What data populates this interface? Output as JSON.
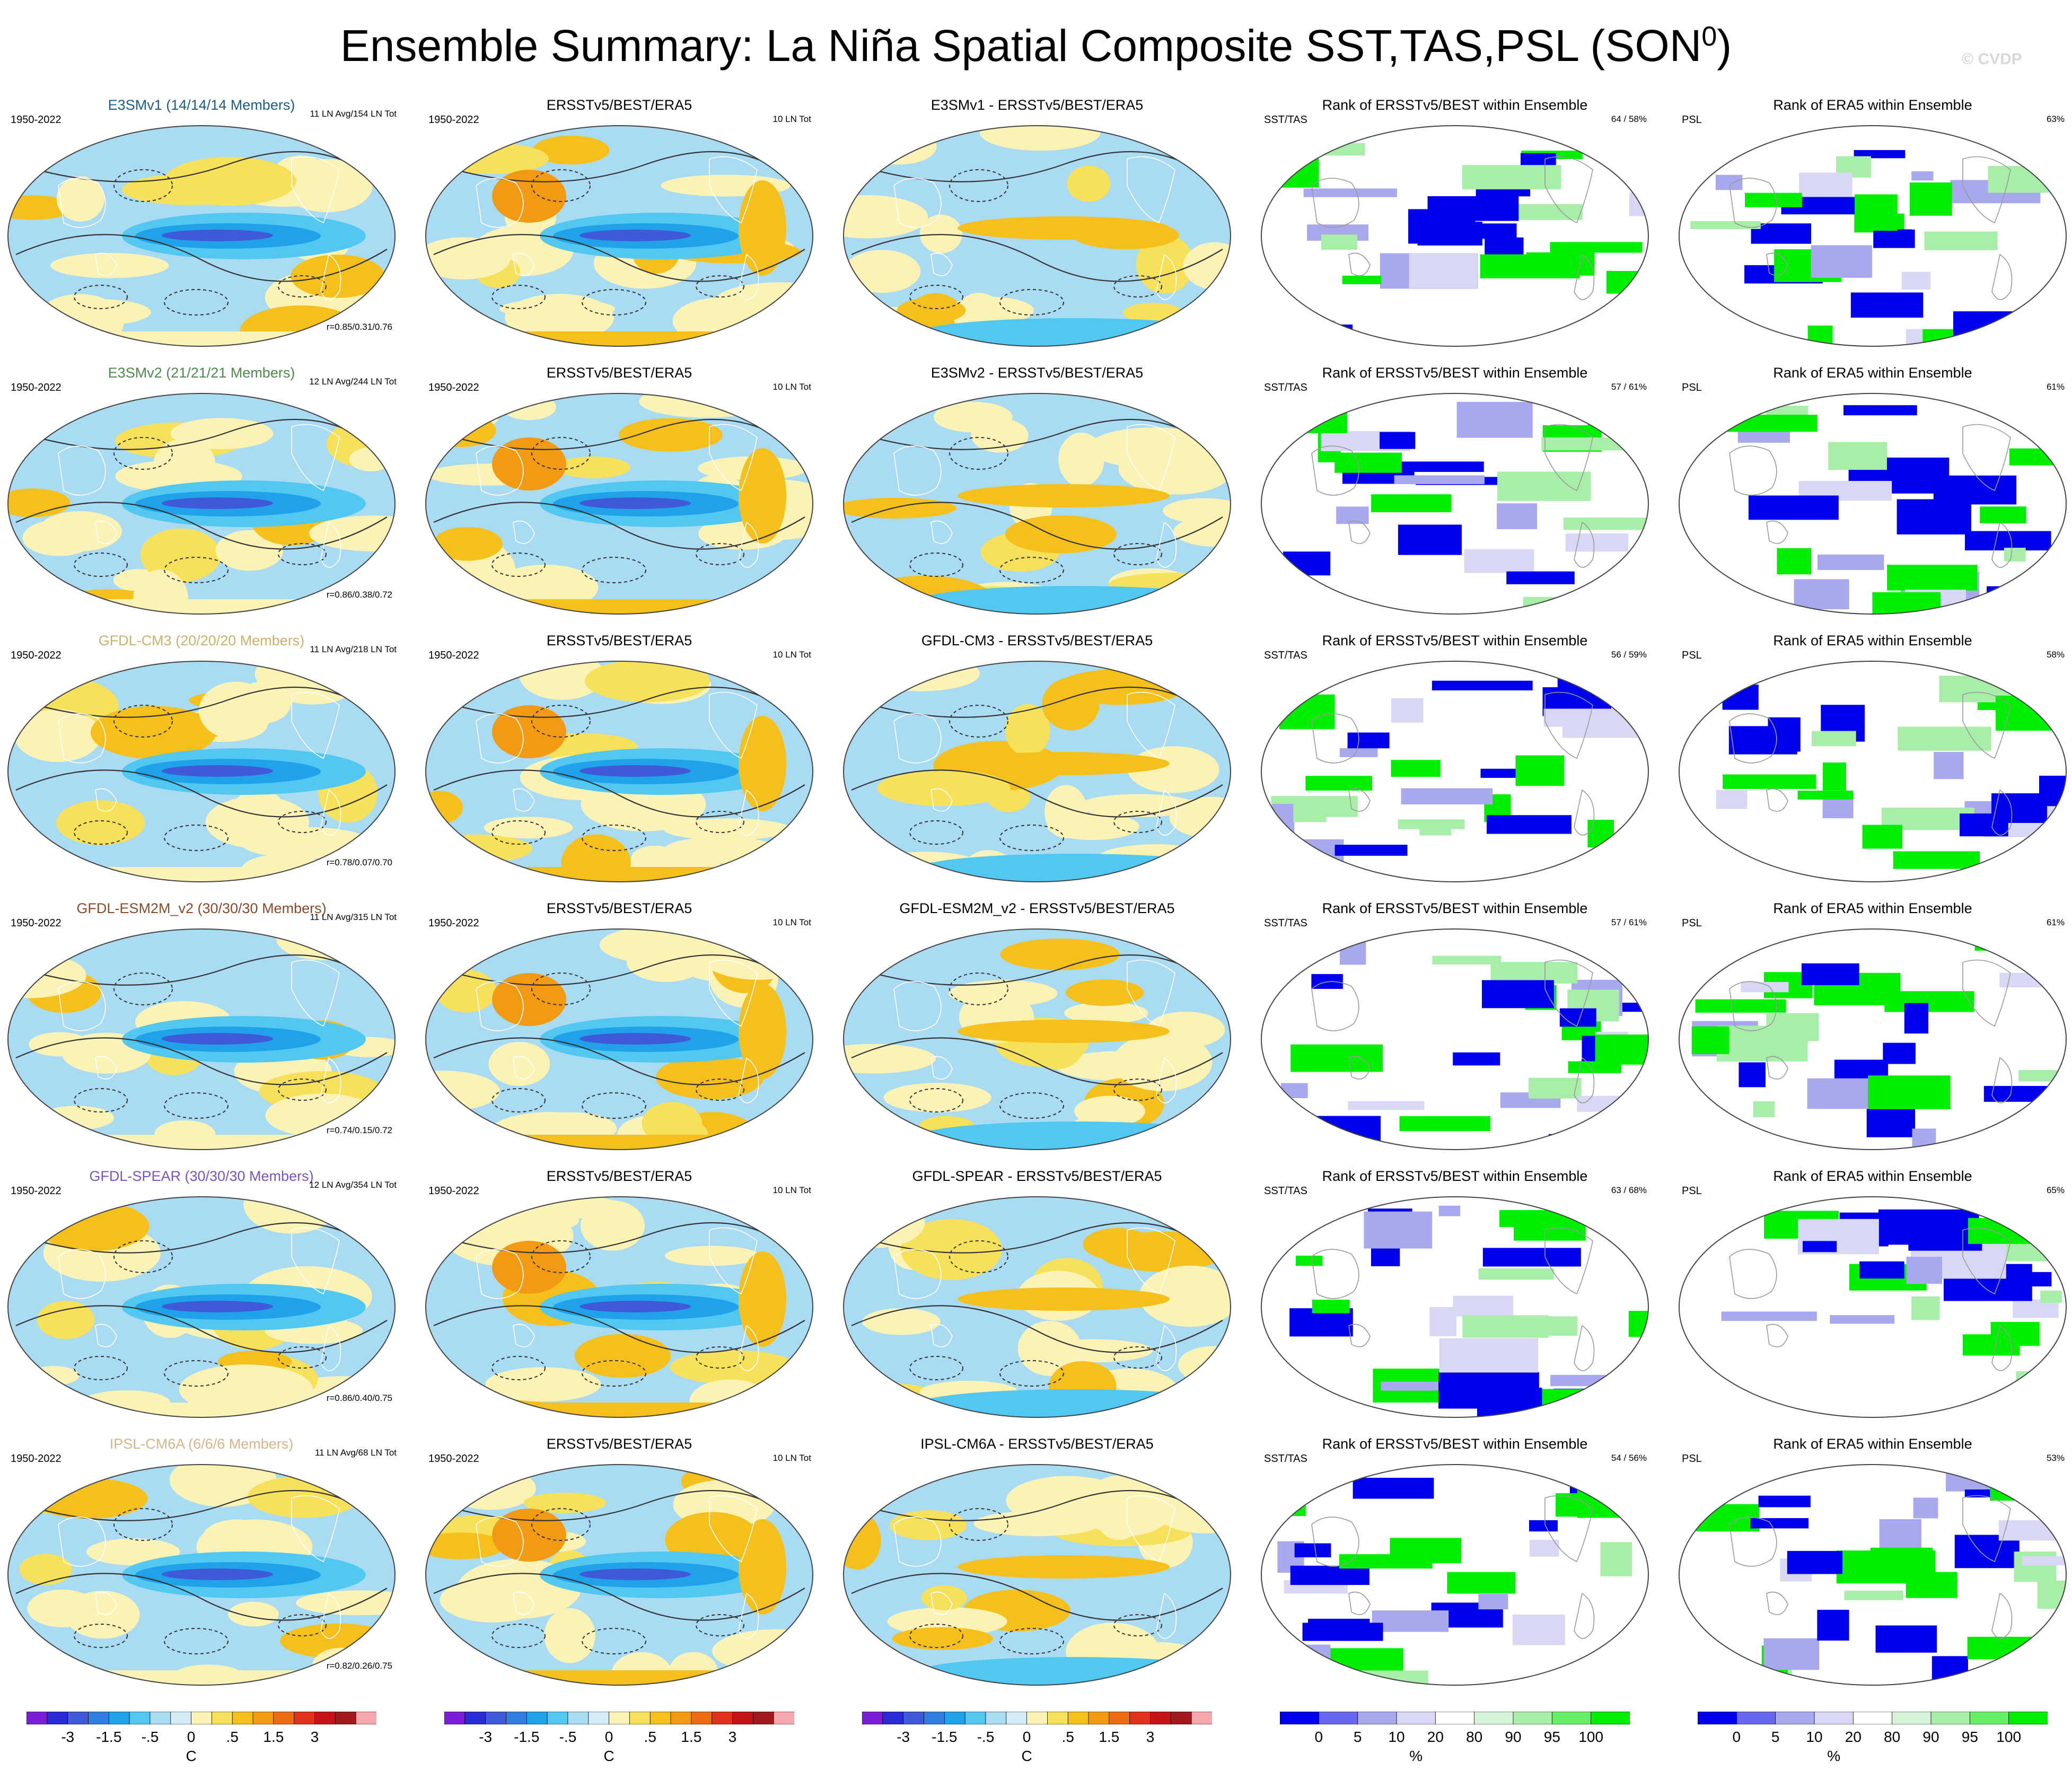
{
  "figure": {
    "title_main": "Ensemble Summary: La Niña Spatial Composite SST,TAS,PSL (SON",
    "title_sup": "0",
    "title_close": ")",
    "watermark": "© CVDP"
  },
  "rows": [
    {
      "model": "E3SMv1 (14/14/14 Members)",
      "model_color": "#1b5e8c",
      "period": "1950-2022",
      "model_stat": "11 LN Avg/154 LN Tot",
      "corr": "r=0.85/0.31/0.76",
      "obs_title": "ERSSTv5/BEST/ERA5",
      "obs_period": "1950-2022",
      "obs_stat": "10 LN Tot",
      "diff_title": "E3SMv1 - ERSSTv5/BEST/ERA5",
      "rank1_title": "Rank of ERSSTv5/BEST within Ensemble",
      "rank1_label": "SST/TAS",
      "rank1_pct": "64 /  58%",
      "rank2_title": "Rank of ERA5 within Ensemble",
      "rank2_label": "PSL",
      "rank2_pct": "63%"
    },
    {
      "model": "E3SMv2 (21/21/21 Members)",
      "model_color": "#4e8a4e",
      "period": "1950-2022",
      "model_stat": "12 LN Avg/244 LN Tot",
      "corr": "r=0.86/0.38/0.72",
      "obs_title": "ERSSTv5/BEST/ERA5",
      "obs_period": "1950-2022",
      "obs_stat": "10 LN Tot",
      "diff_title": "E3SMv2 - ERSSTv5/BEST/ERA5",
      "rank1_title": "Rank of ERSSTv5/BEST within Ensemble",
      "rank1_label": "SST/TAS",
      "rank1_pct": "57 /  61%",
      "rank2_title": "Rank of ERA5 within Ensemble",
      "rank2_label": "PSL",
      "rank2_pct": "61%"
    },
    {
      "model": "GFDL-CM3 (20/20/20 Members)",
      "model_color": "#c9b26b",
      "period": "1950-2022",
      "model_stat": "11 LN Avg/218 LN Tot",
      "corr": "r=0.78/0.07/0.70",
      "obs_title": "ERSSTv5/BEST/ERA5",
      "obs_period": "1950-2022",
      "obs_stat": "10 LN Tot",
      "diff_title": "GFDL-CM3 - ERSSTv5/BEST/ERA5",
      "rank1_title": "Rank of ERSSTv5/BEST within Ensemble",
      "rank1_label": "SST/TAS",
      "rank1_pct": "56 /  59%",
      "rank2_title": "Rank of ERA5 within Ensemble",
      "rank2_label": "PSL",
      "rank2_pct": "58%"
    },
    {
      "model": "GFDL-ESM2M_v2 (30/30/30 Members)",
      "model_color": "#8b4a2b",
      "period": "1950-2022",
      "model_stat": "11 LN Avg/315 LN Tot",
      "corr": "r=0.74/0.15/0.72",
      "obs_title": "ERSSTv5/BEST/ERA5",
      "obs_period": "1950-2022",
      "obs_stat": "10 LN Tot",
      "diff_title": "GFDL-ESM2M_v2 - ERSSTv5/BEST/ERA5",
      "rank1_title": "Rank of ERSSTv5/BEST within Ensemble",
      "rank1_label": "SST/TAS",
      "rank1_pct": "57 /  61%",
      "rank2_title": "Rank of ERA5 within Ensemble",
      "rank2_label": "PSL",
      "rank2_pct": "61%"
    },
    {
      "model": "GFDL-SPEAR (30/30/30 Members)",
      "model_color": "#7b52c7",
      "period": "1950-2022",
      "model_stat": "12 LN Avg/354 LN Tot",
      "corr": "r=0.86/0.40/0.75",
      "obs_title": "ERSSTv5/BEST/ERA5",
      "obs_period": "1950-2022",
      "obs_stat": "10 LN Tot",
      "diff_title": "GFDL-SPEAR - ERSSTv5/BEST/ERA5",
      "rank1_title": "Rank of ERSSTv5/BEST within Ensemble",
      "rank1_label": "SST/TAS",
      "rank1_pct": "63 /  68%",
      "rank2_title": "Rank of ERA5 within Ensemble",
      "rank2_label": "PSL",
      "rank2_pct": "65%"
    },
    {
      "model": "IPSL-CM6A (6/6/6 Members)",
      "model_color": "#d9b38c",
      "period": "1950-2022",
      "model_stat": "11 LN Avg/68 LN Tot",
      "corr": "r=0.82/0.26/0.75",
      "obs_title": "ERSSTv5/BEST/ERA5",
      "obs_period": "1950-2022",
      "obs_stat": "10 LN Tot",
      "diff_title": "IPSL-CM6A - ERSSTv5/BEST/ERA5",
      "rank1_title": "Rank of ERSSTv5/BEST within Ensemble",
      "rank1_label": "SST/TAS",
      "rank1_pct": "54 /  56%",
      "rank2_title": "Rank of ERA5 within Ensemble",
      "rank2_label": "PSL",
      "rank2_pct": "53%"
    }
  ],
  "colorbars": {
    "temp": {
      "colors": [
        "#7a1fd6",
        "#2a2ad6",
        "#3f5ad9",
        "#2f7ee0",
        "#1fa2ea",
        "#52c7f2",
        "#a9dcf3",
        "#d5ecf7",
        "#fbf3b5",
        "#f8e15a",
        "#f5c01c",
        "#f39a14",
        "#ee6b13",
        "#e3321b",
        "#c61317",
        "#a3191b",
        "#f6a8ae"
      ],
      "ticks": [
        "-3",
        "-1.5",
        "-.5",
        "0",
        ".5",
        "1.5",
        "3"
      ],
      "tick_edges": [
        2,
        4,
        6,
        8,
        10,
        12,
        14
      ],
      "unit": "C"
    },
    "rank": {
      "colors": [
        "#0000ee",
        "#6666ee",
        "#a8a8ee",
        "#d8d8f4",
        "#ffffff",
        "#d8f4d8",
        "#a8eea8",
        "#66ee66",
        "#00ee00"
      ],
      "ticks": [
        "0",
        "5",
        "10",
        "20",
        "80",
        "90",
        "95",
        "100"
      ],
      "tick_edges": [
        1,
        2,
        3,
        4,
        5,
        6,
        7,
        8
      ],
      "unit": "%"
    }
  }
}
